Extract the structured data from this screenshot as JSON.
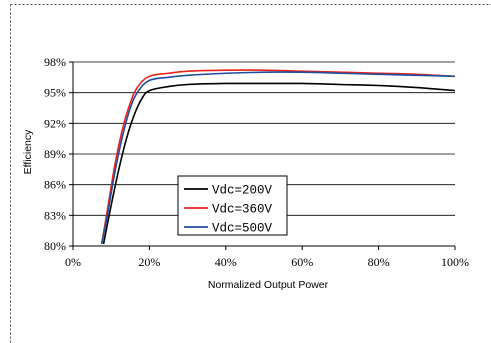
{
  "chart_data": {
    "type": "line",
    "title": "",
    "xlabel": "Normalized Output Power",
    "ylabel": "Efficiency",
    "xlim": [
      0,
      100
    ],
    "ylim": [
      80,
      98
    ],
    "x_ticks": [
      "0%",
      "20%",
      "40%",
      "60%",
      "80%",
      "100%"
    ],
    "x_tick_values": [
      0,
      20,
      40,
      60,
      80,
      100
    ],
    "y_ticks": [
      "80%",
      "83%",
      "86%",
      "89%",
      "92%",
      "95%",
      "98%"
    ],
    "y_tick_values": [
      80,
      83,
      86,
      89,
      92,
      95,
      98
    ],
    "grid": "horizontal",
    "legend_position": "center-left",
    "series": [
      {
        "name": "Vdc=200V",
        "color": "#000000",
        "x": [
          8,
          10,
          12,
          14,
          16,
          18,
          20,
          25,
          30,
          40,
          50,
          60,
          70,
          80,
          90,
          100
        ],
        "y": [
          80.2,
          84.0,
          87.5,
          90.5,
          92.8,
          94.4,
          95.2,
          95.6,
          95.8,
          95.9,
          95.9,
          95.9,
          95.8,
          95.7,
          95.5,
          95.2
        ]
      },
      {
        "name": "Vdc=360V",
        "color": "#e8221c",
        "x": [
          7.5,
          9,
          11,
          13,
          15,
          17,
          20,
          25,
          30,
          40,
          50,
          60,
          70,
          80,
          90,
          100
        ],
        "y": [
          80.2,
          83.5,
          88.0,
          91.5,
          94.0,
          95.6,
          96.6,
          96.9,
          97.1,
          97.2,
          97.2,
          97.1,
          97.0,
          96.9,
          96.8,
          96.6
        ]
      },
      {
        "name": "Vdc=500V",
        "color": "#1f4e9e",
        "x": [
          7.5,
          9,
          11,
          13,
          15,
          17,
          20,
          25,
          30,
          40,
          50,
          60,
          70,
          80,
          90,
          100
        ],
        "y": [
          80.2,
          83.0,
          87.3,
          90.8,
          93.5,
          95.1,
          96.2,
          96.5,
          96.7,
          96.9,
          97.0,
          97.0,
          96.9,
          96.8,
          96.7,
          96.6
        ]
      }
    ]
  }
}
